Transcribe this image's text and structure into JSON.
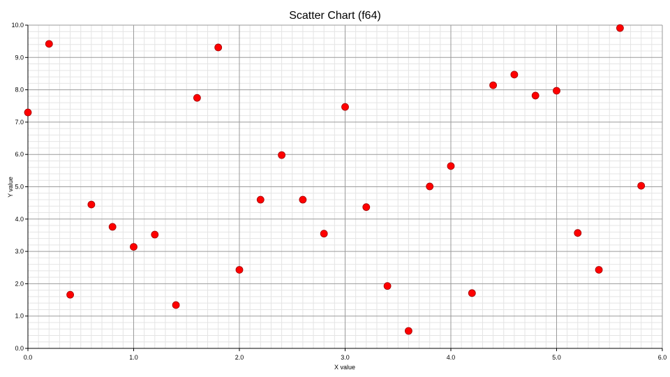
{
  "chart_data": {
    "type": "scatter",
    "title": "Scatter Chart (f64)",
    "xlabel": "X value",
    "ylabel": "Y value",
    "xlim": [
      0.0,
      6.0
    ],
    "ylim": [
      0.0,
      10.0
    ],
    "xticks": [
      "0.0",
      "1.0",
      "2.0",
      "3.0",
      "4.0",
      "5.0",
      "6.0"
    ],
    "yticks": [
      "0.0",
      "1.0",
      "2.0",
      "3.0",
      "4.0",
      "5.0",
      "6.0",
      "7.0",
      "8.0",
      "9.0",
      "10.0"
    ],
    "grid": true,
    "marker_color": "#ff0000",
    "points": [
      {
        "x": 0.0,
        "y": 7.3
      },
      {
        "x": 0.2,
        "y": 9.42
      },
      {
        "x": 0.4,
        "y": 1.66
      },
      {
        "x": 0.6,
        "y": 4.45
      },
      {
        "x": 0.8,
        "y": 3.76
      },
      {
        "x": 1.0,
        "y": 3.14
      },
      {
        "x": 1.2,
        "y": 3.52
      },
      {
        "x": 1.4,
        "y": 1.34
      },
      {
        "x": 1.6,
        "y": 7.75
      },
      {
        "x": 1.8,
        "y": 9.31
      },
      {
        "x": 2.0,
        "y": 2.43
      },
      {
        "x": 2.2,
        "y": 4.6
      },
      {
        "x": 2.4,
        "y": 5.98
      },
      {
        "x": 2.6,
        "y": 4.6
      },
      {
        "x": 2.8,
        "y": 3.55
      },
      {
        "x": 3.0,
        "y": 7.47
      },
      {
        "x": 3.2,
        "y": 4.37
      },
      {
        "x": 3.4,
        "y": 1.93
      },
      {
        "x": 3.6,
        "y": 0.54
      },
      {
        "x": 3.8,
        "y": 5.01
      },
      {
        "x": 4.0,
        "y": 5.64
      },
      {
        "x": 4.2,
        "y": 1.71
      },
      {
        "x": 4.4,
        "y": 8.14
      },
      {
        "x": 4.6,
        "y": 8.47
      },
      {
        "x": 4.8,
        "y": 7.82
      },
      {
        "x": 5.0,
        "y": 7.97
      },
      {
        "x": 5.2,
        "y": 3.57
      },
      {
        "x": 5.4,
        "y": 2.43
      },
      {
        "x": 5.6,
        "y": 9.91
      },
      {
        "x": 5.8,
        "y": 5.03
      }
    ]
  }
}
